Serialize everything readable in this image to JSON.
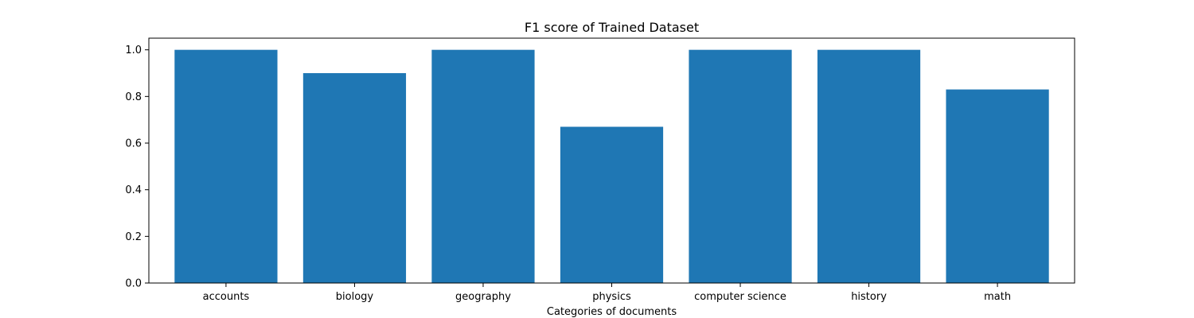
{
  "chart_data": {
    "type": "bar",
    "title": "F1 score of Trained Dataset",
    "xlabel": "Categories of documents",
    "ylabel": "",
    "categories": [
      "accounts",
      "biology",
      "geography",
      "physics",
      "computer science",
      "history",
      "math"
    ],
    "values": [
      1.0,
      0.9,
      1.0,
      0.67,
      1.0,
      1.0,
      0.83
    ],
    "ylim": [
      0,
      1.05
    ],
    "yticks": [
      "0.0",
      "0.2",
      "0.4",
      "0.6",
      "0.8",
      "1.0"
    ],
    "bar_color": "#1f77b4",
    "grid": false,
    "legend": "none"
  }
}
